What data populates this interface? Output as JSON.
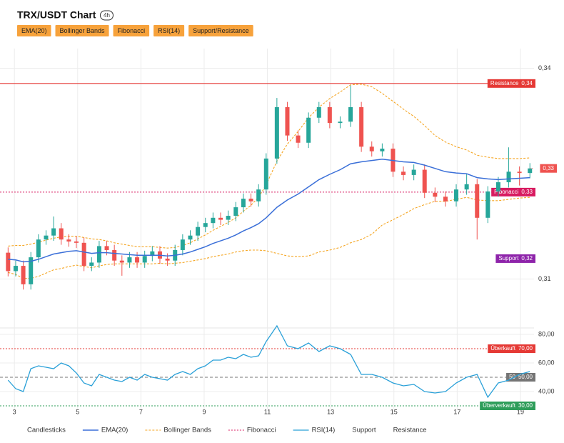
{
  "header": {
    "title": "TRX/USDT Chart",
    "timeframe": "4h",
    "buttons": [
      "EMA(20)",
      "Bollinger Bands",
      "Fibonacci",
      "RSI(14)",
      "Support/Resistance"
    ]
  },
  "chart_data": {
    "type": "candlestick",
    "name": "Candlesticks",
    "x": [
      2.8,
      3.04,
      3.28,
      3.52,
      3.76,
      4.0,
      4.24,
      4.48,
      4.72,
      4.96,
      5.2,
      5.44,
      5.68,
      5.92,
      6.16,
      6.4,
      6.64,
      6.88,
      7.12,
      7.36,
      7.6,
      7.84,
      8.08,
      8.32,
      8.56,
      8.8,
      9.04,
      9.28,
      9.52,
      9.76,
      10.0,
      10.24,
      10.48,
      10.72,
      10.96,
      11.3,
      11.63,
      11.97,
      12.3,
      12.63,
      12.97,
      13.3,
      13.63,
      13.97,
      14.3,
      14.63,
      14.97,
      15.3,
      15.63,
      15.97,
      16.3,
      16.63,
      16.97,
      17.3,
      17.63,
      17.97,
      18.3,
      18.63,
      18.97,
      19.3
    ],
    "open": [
      0.316,
      0.3132,
      0.314,
      0.3112,
      0.3153,
      0.318,
      0.3186,
      0.3197,
      0.318,
      0.3177,
      0.3175,
      0.314,
      0.3145,
      0.317,
      0.3164,
      0.3148,
      0.3145,
      0.3153,
      0.3145,
      0.3155,
      0.3162,
      0.3151,
      0.3148,
      0.3164,
      0.318,
      0.3186,
      0.3199,
      0.3205,
      0.3213,
      0.321,
      0.3216,
      0.3229,
      0.3242,
      0.3238,
      0.3256,
      0.3303,
      0.3381,
      0.3338,
      0.3327,
      0.3365,
      0.3381,
      0.3357,
      0.3359,
      0.3381,
      0.3321,
      0.3314,
      0.3318,
      0.3283,
      0.3278,
      0.3286,
      0.3251,
      0.3245,
      0.3238,
      0.3256,
      0.3264,
      0.3213,
      0.3253,
      0.3267,
      0.3283,
      0.3281
    ],
    "high": [
      0.3168,
      0.3148,
      0.3148,
      0.3161,
      0.3188,
      0.3194,
      0.3215,
      0.3205,
      0.3188,
      0.3185,
      0.3183,
      0.3153,
      0.3178,
      0.3178,
      0.3172,
      0.3156,
      0.3161,
      0.3161,
      0.3163,
      0.317,
      0.317,
      0.3159,
      0.3172,
      0.3188,
      0.3194,
      0.3207,
      0.3213,
      0.3221,
      0.3221,
      0.3224,
      0.3237,
      0.325,
      0.325,
      0.3264,
      0.3311,
      0.3395,
      0.3389,
      0.3346,
      0.3373,
      0.3389,
      0.3389,
      0.3367,
      0.3414,
      0.3389,
      0.3329,
      0.3326,
      0.3326,
      0.3291,
      0.3294,
      0.3294,
      0.3259,
      0.3253,
      0.3264,
      0.328,
      0.3272,
      0.3261,
      0.3275,
      0.332,
      0.3291,
      0.3296
    ],
    "low": [
      0.3124,
      0.3124,
      0.3104,
      0.3104,
      0.3145,
      0.3172,
      0.3178,
      0.3172,
      0.3169,
      0.3167,
      0.3132,
      0.3132,
      0.3137,
      0.3156,
      0.314,
      0.3125,
      0.3137,
      0.3137,
      0.3137,
      0.3147,
      0.3143,
      0.314,
      0.314,
      0.3156,
      0.3172,
      0.3178,
      0.3191,
      0.3197,
      0.3202,
      0.3202,
      0.3208,
      0.3221,
      0.323,
      0.323,
      0.3248,
      0.3295,
      0.333,
      0.3319,
      0.3319,
      0.3357,
      0.3349,
      0.3349,
      0.3351,
      0.3313,
      0.3306,
      0.3306,
      0.3275,
      0.327,
      0.327,
      0.3243,
      0.3237,
      0.323,
      0.323,
      0.3248,
      0.318,
      0.3205,
      0.3245,
      0.3259,
      0.3262,
      0.3273
    ],
    "close": [
      0.3132,
      0.314,
      0.3112,
      0.3153,
      0.318,
      0.3186,
      0.3197,
      0.318,
      0.3177,
      0.3175,
      0.314,
      0.3145,
      0.317,
      0.3164,
      0.3148,
      0.3145,
      0.3153,
      0.3145,
      0.3155,
      0.3162,
      0.3151,
      0.3148,
      0.3164,
      0.318,
      0.3186,
      0.3199,
      0.3205,
      0.3213,
      0.321,
      0.3216,
      0.3229,
      0.3242,
      0.3238,
      0.3256,
      0.3303,
      0.3381,
      0.3338,
      0.3327,
      0.3365,
      0.3381,
      0.3357,
      0.3359,
      0.3381,
      0.3321,
      0.3314,
      0.3318,
      0.3283,
      0.3278,
      0.3286,
      0.3251,
      0.3245,
      0.3238,
      0.3256,
      0.3264,
      0.3213,
      0.3253,
      0.3267,
      0.3283,
      0.3281,
      0.3288
    ],
    "up_color": "#26a69a",
    "down_color": "#ef5350",
    "xlim": [
      2.77,
      19.43
    ],
    "xticks": [
      3,
      5,
      7,
      9,
      11,
      13,
      15,
      17,
      19
    ],
    "ylim": [
      0.305,
      0.347
    ],
    "yticks": [
      {
        "value": 0.344,
        "label": "0,34"
      },
      {
        "value": 0.312,
        "label": "0,31"
      }
    ],
    "last_price": {
      "value": 0.3288,
      "label": "0,33",
      "color": "#ef5350"
    },
    "series": [
      {
        "name": "EMA(20)",
        "color": "#3a6fd8",
        "values": [
          0.315,
          0.3149,
          0.3146,
          0.3147,
          0.315,
          0.3154,
          0.3158,
          0.316,
          0.3162,
          0.3163,
          0.3161,
          0.3159,
          0.316,
          0.316,
          0.3159,
          0.3158,
          0.3157,
          0.3156,
          0.3156,
          0.3156,
          0.3156,
          0.3155,
          0.3156,
          0.3158,
          0.3161,
          0.3165,
          0.3169,
          0.3174,
          0.3178,
          0.3182,
          0.3187,
          0.3193,
          0.3198,
          0.3204,
          0.3213,
          0.3229,
          0.324,
          0.3249,
          0.326,
          0.3271,
          0.3279,
          0.3286,
          0.3295,
          0.3298,
          0.33,
          0.3302,
          0.33,
          0.3298,
          0.3297,
          0.3293,
          0.3288,
          0.3283,
          0.3281,
          0.328,
          0.3274,
          0.3272,
          0.3271,
          0.3272,
          0.3273,
          0.3274
        ]
      },
      {
        "name": "Bollinger Bands",
        "color": "#f5a623",
        "upper": [
          0.317,
          0.3171,
          0.3171,
          0.3173,
          0.3176,
          0.3179,
          0.3182,
          0.3184,
          0.3185,
          0.3185,
          0.3183,
          0.3181,
          0.318,
          0.3178,
          0.3175,
          0.3173,
          0.3171,
          0.3169,
          0.3169,
          0.3169,
          0.3168,
          0.3167,
          0.3168,
          0.3171,
          0.3175,
          0.3181,
          0.3187,
          0.3194,
          0.32,
          0.3206,
          0.3213,
          0.3223,
          0.3232,
          0.3244,
          0.3263,
          0.3299,
          0.3325,
          0.3344,
          0.3365,
          0.3381,
          0.3394,
          0.3404,
          0.3415,
          0.3416,
          0.3412,
          0.3402,
          0.339,
          0.3378,
          0.3367,
          0.3353,
          0.3338,
          0.3328,
          0.3321,
          0.3316,
          0.3308,
          0.3305,
          0.3303,
          0.3303,
          0.3303,
          0.3304
        ],
        "lower": [
          0.313,
          0.3127,
          0.3121,
          0.3121,
          0.3124,
          0.3129,
          0.3134,
          0.3136,
          0.3139,
          0.3141,
          0.3139,
          0.3137,
          0.314,
          0.3142,
          0.3143,
          0.3143,
          0.3143,
          0.3143,
          0.3143,
          0.3143,
          0.3144,
          0.3143,
          0.3144,
          0.3145,
          0.3147,
          0.3149,
          0.3151,
          0.3154,
          0.3156,
          0.3158,
          0.3161,
          0.3163,
          0.3164,
          0.3164,
          0.3163,
          0.3159,
          0.3155,
          0.3154,
          0.3155,
          0.3161,
          0.3164,
          0.3168,
          0.3175,
          0.318,
          0.3188,
          0.3202,
          0.321,
          0.3218,
          0.3227,
          0.3233,
          0.3238,
          0.3238,
          0.3241,
          0.3244,
          0.324,
          0.3239,
          0.3239,
          0.3241,
          0.3243,
          0.3244
        ]
      }
    ],
    "levels": [
      {
        "name": "Resistance",
        "value": 0.3417,
        "label": "0,34",
        "color": "#e53935"
      },
      {
        "name": "Fibonacci",
        "value": 0.3252,
        "label": "0,33",
        "color": "#d81b60"
      },
      {
        "name": "Support",
        "value": 0.3151,
        "label": "0,32",
        "color": "#8e24aa"
      }
    ],
    "rsi": {
      "name": "RSI(14)",
      "color": "#29a0d8",
      "values": [
        48,
        42,
        40,
        56,
        58,
        57,
        56,
        60,
        58,
        53,
        46,
        44,
        52,
        50,
        48,
        47,
        50,
        48,
        52,
        50,
        49,
        48,
        52,
        54,
        52,
        56,
        58,
        62,
        62,
        64,
        63,
        66,
        64,
        65,
        75,
        86,
        72,
        70,
        74,
        68,
        72,
        70,
        66,
        52,
        52,
        50,
        46,
        44,
        45,
        40,
        39,
        40,
        46,
        50,
        52,
        36,
        46,
        48,
        52,
        54
      ],
      "ylim": [
        28,
        83
      ],
      "yticks": [
        {
          "value": 80,
          "label": "80,00"
        },
        {
          "value": 60,
          "label": "60,00"
        },
        {
          "value": 40,
          "label": "40,00"
        }
      ],
      "levels": [
        {
          "name": "Überkauft",
          "value": 70,
          "label": "70,00",
          "color": "#e53935"
        },
        {
          "name": "50",
          "value": 50,
          "label": "50,00",
          "color": "#757575"
        },
        {
          "name": "Überverkauft",
          "value": 30,
          "label": "30,00",
          "color": "#2e9d5a"
        }
      ]
    }
  }
}
